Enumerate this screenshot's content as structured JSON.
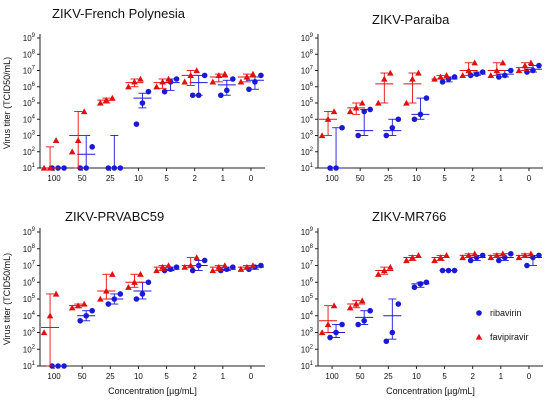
{
  "figure": {
    "ylabel": "Virus titer (TCID50/mL)",
    "xlabel": "Concentration [µg/mL]"
  },
  "legend": {
    "placement": "right of bottom-right panel",
    "items": [
      {
        "label": "ribavirin",
        "marker": "circle",
        "color": "#1a1ad6"
      },
      {
        "label": "favipiravir",
        "marker": "triangle",
        "color": "#e01010"
      }
    ]
  },
  "colors": {
    "ribavirin": "#1a1ad6",
    "favipiravir": "#e01010"
  },
  "chart_data": [
    {
      "type": "scatter",
      "title": "ZIKV-French Polynesia",
      "xlabel": "",
      "ylabel": "Virus titer (TCID50/mL)",
      "categories": [
        "100",
        "50",
        "25",
        "10",
        "5",
        "2",
        "1",
        "0"
      ],
      "ytick_exponents": [
        1,
        2,
        3,
        4,
        5,
        6,
        7,
        8,
        9
      ],
      "yscale": "log10",
      "ylim": [
        10,
        1000000000
      ],
      "series": [
        {
          "name": "ribavirin",
          "marker": "circle",
          "values": [
            [
              10,
              10,
              10
            ],
            [
              10,
              10,
              200
            ],
            [
              10,
              10,
              10
            ],
            [
              5000,
              100000,
              500000
            ],
            [
              500000,
              2000000,
              3000000
            ],
            [
              300000,
              300000,
              5000000
            ],
            [
              300000,
              600000,
              3000000
            ],
            [
              700000,
              2000000,
              5000000
            ]
          ],
          "mean": [
            10,
            70,
            10,
            200000,
            1800000,
            1800000,
            1300000,
            2500000
          ],
          "sd_range": [
            [
              10,
              10
            ],
            [
              10,
              1000
            ],
            [
              10,
              1000
            ],
            [
              50000,
              400000
            ],
            [
              600000,
              3000000
            ],
            [
              300000,
              5000000
            ],
            [
              300000,
              2500000
            ],
            [
              700000,
              4000000
            ]
          ]
        },
        {
          "name": "favipiravir",
          "marker": "triangle",
          "values": [
            [
              10,
              10,
              500
            ],
            [
              100,
              500,
              30000
            ],
            [
              100000,
              150000,
              200000
            ],
            [
              1000000,
              2000000,
              3000000
            ],
            [
              1000000,
              2000000,
              3000000
            ],
            [
              2000000,
              5000000,
              10000000
            ],
            [
              2000000,
              5000000,
              6000000
            ],
            [
              2000000,
              4000000,
              6000000
            ]
          ],
          "mean": [
            10,
            1000,
            150000,
            1800000,
            1800000,
            5000000,
            4000000,
            4000000
          ],
          "sd_range": [
            [
              10,
              200
            ],
            [
              10,
              30000
            ],
            [
              100000,
              200000
            ],
            [
              1000000,
              3000000
            ],
            [
              800000,
              3000000
            ],
            [
              1200000,
              10000000
            ],
            [
              2000000,
              6000000
            ],
            [
              2000000,
              6000000
            ]
          ]
        }
      ]
    },
    {
      "type": "scatter",
      "title": "ZIKV-Paraiba",
      "xlabel": "",
      "ylabel": "",
      "categories": [
        "100",
        "50",
        "25",
        "10",
        "5",
        "2",
        "1",
        "0"
      ],
      "ytick_exponents": [
        1,
        2,
        3,
        4,
        5,
        6,
        7,
        8,
        9
      ],
      "yscale": "log10",
      "ylim": [
        10,
        1000000000
      ],
      "series": [
        {
          "name": "ribavirin",
          "marker": "circle",
          "values": [
            [
              10,
              10,
              3000
            ],
            [
              1000,
              30000,
              40000
            ],
            [
              1000,
              3000,
              10000
            ],
            [
              10000,
              20000,
              200000
            ],
            [
              2000000,
              3000000,
              4000000
            ],
            [
              5000000,
              6000000,
              8000000
            ],
            [
              4000000,
              5000000,
              10000000
            ],
            [
              8000000,
              10000000,
              20000000
            ]
          ],
          "mean": [
            10,
            2000,
            2000,
            20000,
            3000000,
            6000000,
            6000000,
            12000000
          ],
          "sd_range": [
            [
              10,
              3000
            ],
            [
              1000,
              40000
            ],
            [
              1000,
              10000
            ],
            [
              10000,
              200000
            ],
            [
              2000000,
              4000000
            ],
            [
              5000000,
              8000000
            ],
            [
              4000000,
              10000000
            ],
            [
              8000000,
              20000000
            ]
          ]
        },
        {
          "name": "favipiravir",
          "marker": "triangle",
          "values": [
            [
              1000,
              10000,
              30000
            ],
            [
              30000,
              50000,
              100000
            ],
            [
              100000,
              3000000,
              7000000
            ],
            [
              100000,
              3000000,
              7000000
            ],
            [
              3000000,
              4000000,
              5000000
            ],
            [
              5000000,
              10000000,
              30000000
            ],
            [
              5000000,
              10000000,
              30000000
            ],
            [
              10000000,
              20000000,
              30000000
            ]
          ],
          "mean": [
            10000,
            50000,
            1500000,
            1500000,
            3000000,
            10000000,
            10000000,
            15000000
          ],
          "sd_range": [
            [
              1000,
              30000
            ],
            [
              20000,
              100000
            ],
            [
              100000,
              7000000
            ],
            [
              100000,
              7000000
            ],
            [
              3000000,
              5000000
            ],
            [
              5000000,
              30000000
            ],
            [
              5000000,
              30000000
            ],
            [
              10000000,
              30000000
            ]
          ]
        }
      ]
    },
    {
      "type": "scatter",
      "title": "ZIKV-PRVABC59",
      "xlabel": "Concentration [µg/mL]",
      "ylabel": "Virus titer (TCID50/mL)",
      "categories": [
        "100",
        "50",
        "25",
        "10",
        "5",
        "2",
        "1",
        "0"
      ],
      "ytick_exponents": [
        1,
        2,
        3,
        4,
        5,
        6,
        7,
        8,
        9
      ],
      "yscale": "log10",
      "ylim": [
        10,
        1000000000
      ],
      "series": [
        {
          "name": "ribavirin",
          "marker": "circle",
          "values": [
            [
              10,
              10,
              10
            ],
            [
              5000,
              10000,
              20000
            ],
            [
              50000,
              100000,
              200000
            ],
            [
              100000,
              200000,
              1000000
            ],
            [
              5000000,
              6000000,
              8000000
            ],
            [
              5000000,
              10000000,
              20000000
            ],
            [
              5000000,
              6000000,
              8000000
            ],
            [
              6000000,
              8000000,
              10000000
            ]
          ],
          "mean": [
            10,
            10000,
            100000,
            300000,
            6000000,
            10000000,
            6000000,
            8000000
          ],
          "sd_range": [
            [
              10,
              10
            ],
            [
              5000,
              20000
            ],
            [
              50000,
              200000
            ],
            [
              100000,
              1000000
            ],
            [
              5000000,
              8000000
            ],
            [
              5000000,
              20000000
            ],
            [
              5000000,
              8000000
            ],
            [
              6000000,
              10000000
            ]
          ]
        },
        {
          "name": "favipiravir",
          "marker": "triangle",
          "values": [
            [
              1000,
              10000,
              200000
            ],
            [
              30000,
              40000,
              50000
            ],
            [
              100000,
              300000,
              3000000
            ],
            [
              500000,
              1000000,
              3000000
            ],
            [
              5000000,
              8000000,
              10000000
            ],
            [
              8000000,
              10000000,
              30000000
            ],
            [
              5000000,
              8000000,
              10000000
            ],
            [
              6000000,
              8000000,
              10000000
            ]
          ],
          "mean": [
            2000,
            40000,
            300000,
            1000000,
            8000000,
            10000000,
            8000000,
            8000000
          ],
          "sd_range": [
            [
              10,
              200000
            ],
            [
              30000,
              50000
            ],
            [
              100000,
              3000000
            ],
            [
              500000,
              3000000
            ],
            [
              5000000,
              10000000
            ],
            [
              8000000,
              30000000
            ],
            [
              5000000,
              10000000
            ],
            [
              6000000,
              10000000
            ]
          ]
        }
      ]
    },
    {
      "type": "scatter",
      "title": "ZIKV-MR766",
      "xlabel": "Concentration [µg/mL]",
      "ylabel": "",
      "categories": [
        "100",
        "50",
        "25",
        "10",
        "5",
        "2",
        "1",
        "0"
      ],
      "ytick_exponents": [
        1,
        2,
        3,
        4,
        5,
        6,
        7,
        8,
        9
      ],
      "yscale": "log10",
      "ylim": [
        10,
        1000000000
      ],
      "series": [
        {
          "name": "ribavirin",
          "marker": "circle",
          "values": [
            [
              500,
              1000,
              3000
            ],
            [
              3000,
              5000,
              20000
            ],
            [
              300,
              1000,
              50000
            ],
            [
              500000,
              800000,
              1000000
            ],
            [
              5000000,
              5000000,
              5000000
            ],
            [
              20000000,
              30000000,
              40000000
            ],
            [
              20000000,
              30000000,
              50000000
            ],
            [
              10000000,
              30000000,
              40000000
            ]
          ],
          "mean": [
            1000,
            8000,
            10000,
            800000,
            5000000,
            30000000,
            30000000,
            30000000
          ],
          "sd_range": [
            [
              500,
              3000
            ],
            [
              3000,
              20000
            ],
            [
              400,
              100000
            ],
            [
              500000,
              1000000
            ],
            [
              5000000,
              5000000
            ],
            [
              20000000,
              40000000
            ],
            [
              20000000,
              50000000
            ],
            [
              10000000,
              40000000
            ]
          ]
        },
        {
          "name": "favipiravir",
          "marker": "triangle",
          "values": [
            [
              1000,
              3000,
              40000
            ],
            [
              30000,
              50000,
              80000
            ],
            [
              3000000,
              5000000,
              8000000
            ],
            [
              20000000,
              30000000,
              40000000
            ],
            [
              20000000,
              30000000,
              40000000
            ],
            [
              30000000,
              40000000,
              50000000
            ],
            [
              30000000,
              40000000,
              50000000
            ],
            [
              30000000,
              40000000,
              50000000
            ]
          ],
          "mean": [
            5000,
            50000,
            5000000,
            30000000,
            30000000,
            40000000,
            40000000,
            40000000
          ],
          "sd_range": [
            [
              1000,
              40000
            ],
            [
              30000,
              80000
            ],
            [
              3000000,
              8000000
            ],
            [
              20000000,
              40000000
            ],
            [
              20000000,
              40000000
            ],
            [
              30000000,
              50000000
            ],
            [
              30000000,
              50000000
            ],
            [
              30000000,
              50000000
            ]
          ]
        }
      ]
    }
  ]
}
